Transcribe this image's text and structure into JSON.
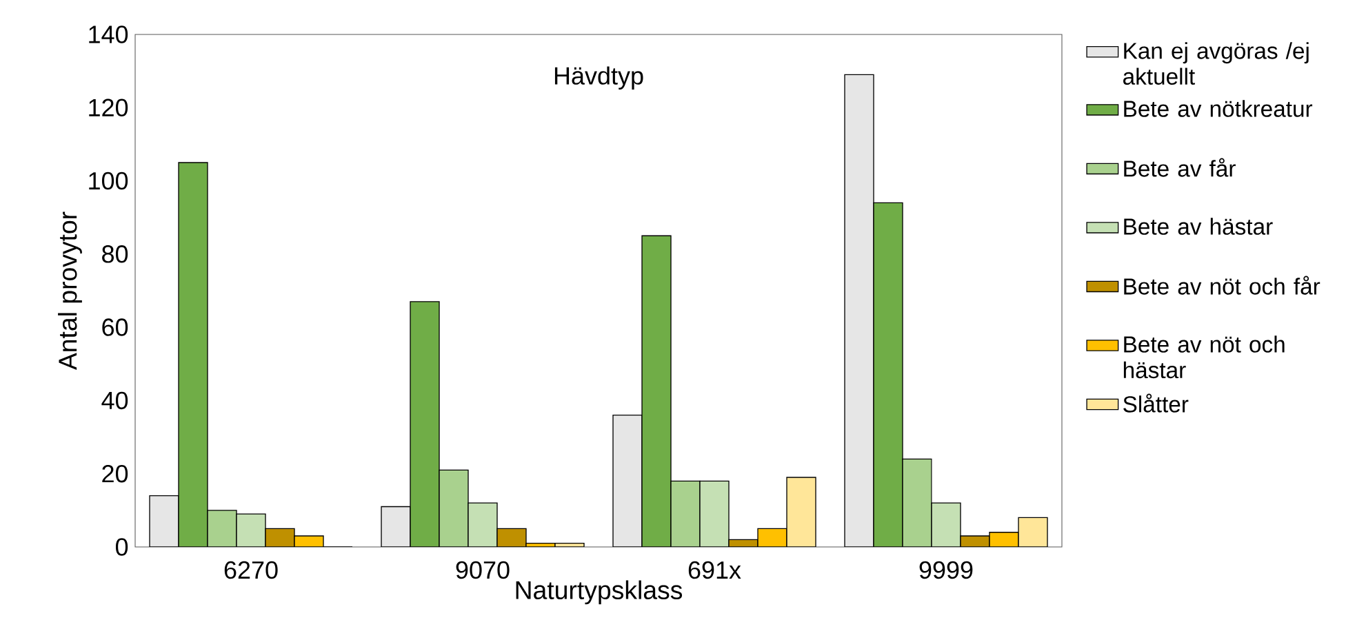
{
  "chart_data": {
    "type": "bar",
    "legend_title": "Hävdtyp",
    "xlabel": "Naturtypsklass",
    "ylabel": "Antal provytor",
    "categories": [
      "6270",
      "9070",
      "691x",
      "9999"
    ],
    "series": [
      {
        "name": "Kan ej avgöras /ej aktuellt",
        "color": "#e6e6e6",
        "values": [
          14,
          11,
          36,
          129
        ]
      },
      {
        "name": "Bete av nötkreatur",
        "color": "#70ad47",
        "values": [
          105,
          67,
          85,
          94
        ]
      },
      {
        "name": "Bete av får",
        "color": "#a9d18e",
        "values": [
          10,
          21,
          18,
          24
        ]
      },
      {
        "name": "Bete av hästar",
        "color": "#c5e0b4",
        "values": [
          9,
          12,
          18,
          12
        ]
      },
      {
        "name": "Bete av nöt och får",
        "color": "#bf9000",
        "values": [
          5,
          5,
          2,
          3
        ]
      },
      {
        "name": "Bete av nöt och hästar",
        "color": "#ffc000",
        "values": [
          3,
          1,
          5,
          4
        ]
      },
      {
        "name": "Slåtter",
        "color": "#ffe699",
        "values": [
          0,
          1,
          19,
          8
        ]
      }
    ],
    "ylim": [
      0,
      140
    ],
    "yticks": [
      0,
      20,
      40,
      60,
      80,
      100,
      120,
      140
    ],
    "grid": false,
    "legend": "right"
  }
}
